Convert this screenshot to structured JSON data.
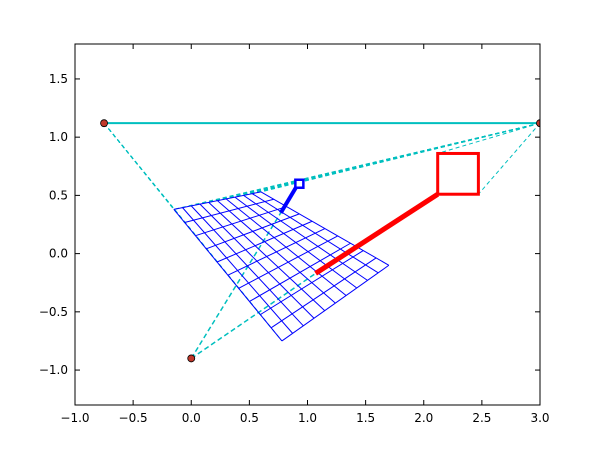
{
  "chart_data": {
    "type": "line",
    "xlim": [
      -1.0,
      3.0
    ],
    "ylim": [
      -1.3,
      1.8
    ],
    "xticks": [
      "−1.0",
      "−0.5",
      "0.0",
      "0.5",
      "1.0",
      "1.5",
      "2.0",
      "2.5",
      "3.0"
    ],
    "xtick_values": [
      -1.0,
      -0.5,
      0.0,
      0.5,
      1.0,
      1.5,
      2.0,
      2.5,
      3.0
    ],
    "yticks": [
      "−1.0",
      "−0.5",
      "0.0",
      "0.5",
      "1.0",
      "1.5"
    ],
    "ytick_values": [
      -1.0,
      -0.5,
      0.0,
      0.5,
      1.0,
      1.5
    ],
    "grid": false,
    "colors": {
      "cyan": "#00bfbf",
      "blue": "#0000ff",
      "red": "#ff0000",
      "point_fill": "#c0392b"
    },
    "points": [
      {
        "x": -0.75,
        "y": 1.12
      },
      {
        "x": 3.0,
        "y": 1.12
      },
      {
        "x": 0.0,
        "y": -0.9
      }
    ],
    "horizon_line": {
      "x": [
        -0.75,
        3.0
      ],
      "y": [
        1.12,
        1.12
      ]
    },
    "grid_quad": {
      "corners": [
        [
          -0.15,
          0.38
        ],
        [
          0.6,
          0.53
        ],
        [
          1.7,
          -0.1
        ],
        [
          0.78,
          -0.75
        ]
      ],
      "divisions_u": 10,
      "divisions_v": 10
    },
    "blue_marker": {
      "segment": {
        "x": [
          0.77,
          0.92
        ],
        "y": [
          0.35,
          0.6
        ]
      },
      "square_center": {
        "x": 0.93,
        "y": 0.6
      }
    },
    "red_marker": {
      "segment": {
        "x": [
          1.07,
          2.12
        ],
        "y": [
          -0.17,
          0.51
        ]
      },
      "square": {
        "x": [
          2.12,
          2.47
        ],
        "y": [
          0.51,
          0.86
        ]
      }
    },
    "dashed_lines_bottom": [
      {
        "x": [
          0.0,
          0.77
        ],
        "y": [
          -0.9,
          0.35
        ]
      },
      {
        "x": [
          0.0,
          1.07
        ],
        "y": [
          -0.9,
          -0.17
        ]
      }
    ]
  }
}
